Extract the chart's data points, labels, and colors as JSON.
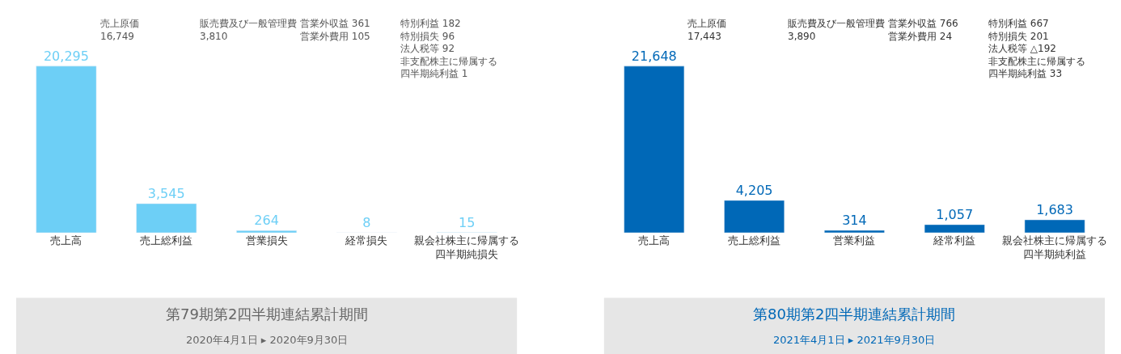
{
  "chart_data": [
    {
      "type": "bar",
      "title": "第79期第2四半期連結累計期間",
      "subtitle": "2020年4月1日 ▸ 2020年9月30日",
      "categories": [
        "売上高",
        "売上総利益",
        "営業損失",
        "経常損失",
        "親会社株主に帰属する四半期純損失"
      ],
      "values": [
        20295,
        3545,
        264,
        8,
        15
      ],
      "colors": [
        "#6dcff6",
        "#6dcff6",
        "#6dcff6",
        "#6dcff6",
        "#6dcff6"
      ],
      "value_labels": [
        "20,295",
        "3,545",
        "264",
        "8",
        "15"
      ],
      "annotations": [
        "売上原価\n16,749",
        "販売費及び一般管理費\n3,810",
        "営業外収益 361\n営業外費用 105",
        "特別利益 182\n特別損失 96\n法人税等 92\n非支配株主に帰属する四半期純利益 1"
      ]
    },
    {
      "type": "bar",
      "title": "第80期第2四半期連結累計期間",
      "subtitle": "2021年4月1日 ▸ 2021年9月30日",
      "categories": [
        "売上高",
        "売上総利益",
        "営業利益",
        "経常利益",
        "親会社株主に帰属する四半期純利益"
      ],
      "values": [
        21648,
        4205,
        314,
        1057,
        1683
      ],
      "colors": [
        "#0068b7",
        "#0068b7",
        "#0068b7",
        "#0068b7",
        "#0068b7"
      ],
      "value_labels": [
        "21,648",
        "4,205",
        "314",
        "1,057",
        "1,683"
      ],
      "annotations": [
        "売上原価\n17,443",
        "販売費及び一般管理費\n3,890",
        "営業外収益 766\n営業外費用 24",
        "特別利益 667\n特別損失 201\n法人税等 △192\n非支配株主に帰属する四半期純利益 33"
      ]
    }
  ]
}
